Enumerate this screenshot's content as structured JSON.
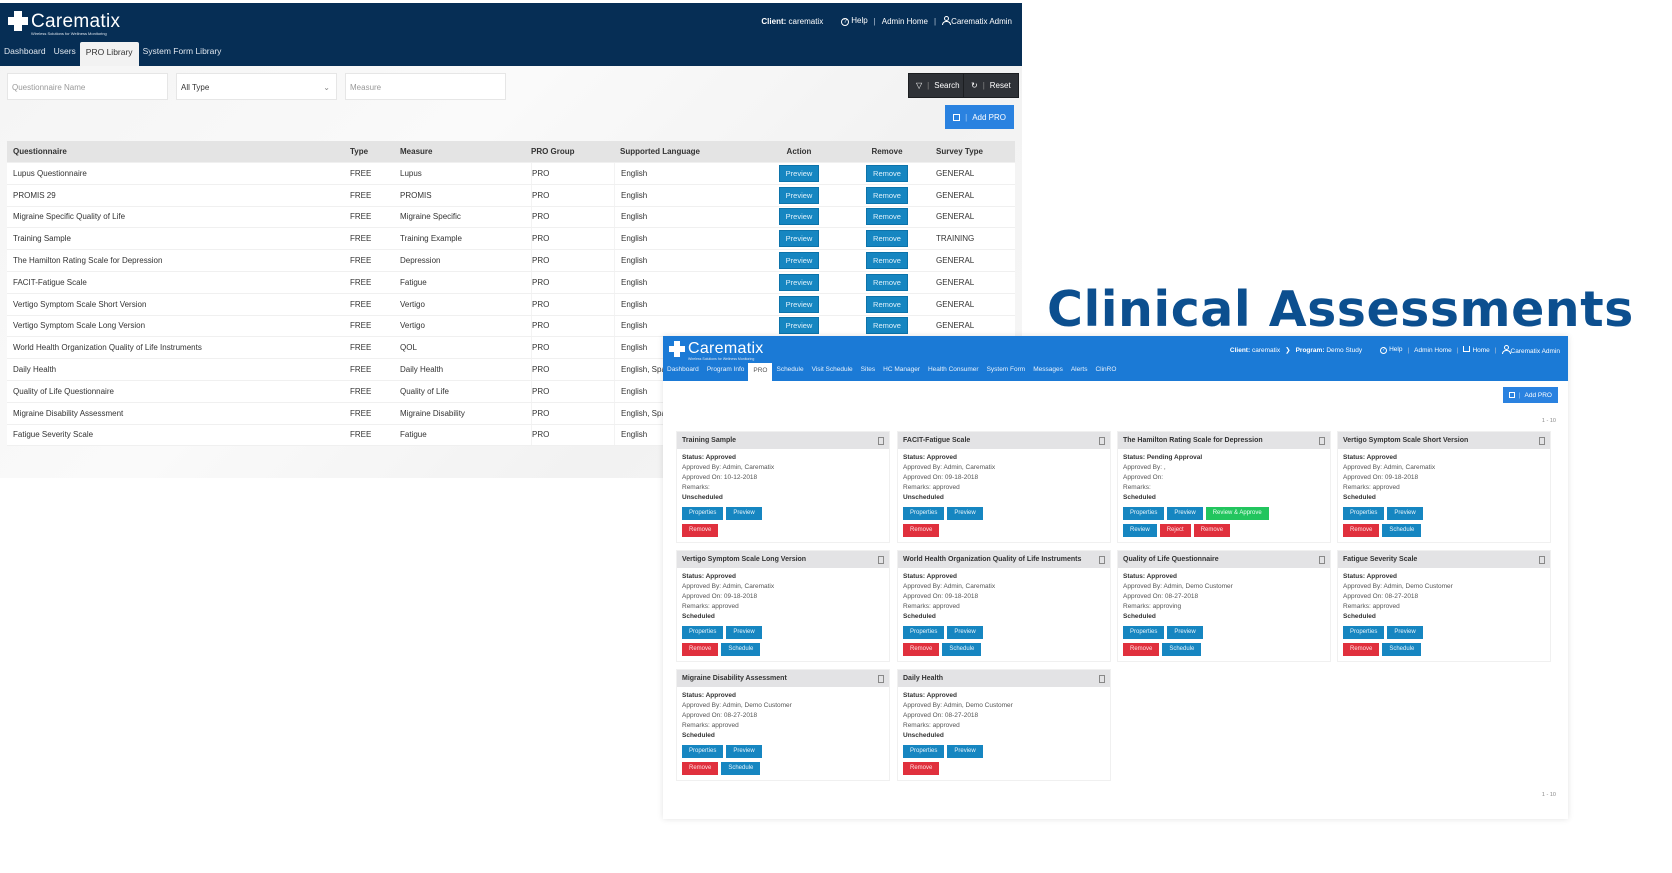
{
  "slide_title": "Clinical Assessments",
  "library_window": {
    "brand": {
      "name": "Carematix",
      "tagline": "Wireless Solutions for Wellness Monitoring"
    },
    "header": {
      "client_label": "Client:",
      "client_value": "carematix",
      "help": "Help",
      "admin_home": "Admin Home",
      "user": "Carematix Admin"
    },
    "nav": [
      "Dashboard",
      "Users",
      "PRO Library",
      "System Form Library"
    ],
    "active_tab": "PRO Library",
    "filters": {
      "questionnaire_placeholder": "Questionnaire Name",
      "type_value": "All Type",
      "measure_placeholder": "Measure"
    },
    "buttons": {
      "search": "Search",
      "reset": "Reset",
      "add_pro": "Add PRO"
    },
    "table": {
      "columns": [
        "Questionnaire",
        "Type",
        "Measure",
        "PRO Group",
        "Supported Language",
        "Action",
        "Remove",
        "Survey Type"
      ],
      "action_label": "Preview",
      "remove_label": "Remove",
      "rows": [
        {
          "questionnaire": "Lupus Questionnaire",
          "type": "FREE",
          "measure": "Lupus",
          "group": "PRO",
          "language": "English",
          "survey_type": "GENERAL",
          "has_actions": true
        },
        {
          "questionnaire": "PROMIS 29",
          "type": "FREE",
          "measure": "PROMIS",
          "group": "PRO",
          "language": "English",
          "survey_type": "GENERAL",
          "has_actions": true
        },
        {
          "questionnaire": "Migraine Specific Quality of Life",
          "type": "FREE",
          "measure": "Migraine Specific",
          "group": "PRO",
          "language": "English",
          "survey_type": "GENERAL",
          "has_actions": true
        },
        {
          "questionnaire": "Training Sample",
          "type": "FREE",
          "measure": "Training Example",
          "group": "PRO",
          "language": "English",
          "survey_type": "TRAINING",
          "has_actions": true
        },
        {
          "questionnaire": "The Hamilton Rating Scale for Depression",
          "type": "FREE",
          "measure": "Depression",
          "group": "PRO",
          "language": "English",
          "survey_type": "GENERAL",
          "has_actions": true
        },
        {
          "questionnaire": "FACIT-Fatigue Scale",
          "type": "FREE",
          "measure": "Fatigue",
          "group": "PRO",
          "language": "English",
          "survey_type": "GENERAL",
          "has_actions": true
        },
        {
          "questionnaire": "Vertigo Symptom Scale Short Version",
          "type": "FREE",
          "measure": "Vertigo",
          "group": "PRO",
          "language": "English",
          "survey_type": "GENERAL",
          "has_actions": true
        },
        {
          "questionnaire": "Vertigo Symptom Scale Long Version",
          "type": "FREE",
          "measure": "Vertigo",
          "group": "PRO",
          "language": "English",
          "survey_type": "GENERAL",
          "has_actions": true
        },
        {
          "questionnaire": "World Health Organization Quality of Life Instruments",
          "type": "FREE",
          "measure": "QOL",
          "group": "PRO",
          "language": "English",
          "survey_type": "",
          "has_actions": false
        },
        {
          "questionnaire": "Daily Health",
          "type": "FREE",
          "measure": "Daily Health",
          "group": "PRO",
          "language": "English, Spanish",
          "survey_type": "",
          "has_actions": false
        },
        {
          "questionnaire": "Quality of Life Questionnaire",
          "type": "FREE",
          "measure": "Quality of Life",
          "group": "PRO",
          "language": "English",
          "survey_type": "",
          "has_actions": false
        },
        {
          "questionnaire": "Migraine Disability Assessment",
          "type": "FREE",
          "measure": "Migraine Disability",
          "group": "PRO",
          "language": "English, Spanish",
          "survey_type": "",
          "has_actions": false
        },
        {
          "questionnaire": "Fatigue Severity Scale",
          "type": "FREE",
          "measure": "Fatigue",
          "group": "PRO",
          "language": "English",
          "survey_type": "",
          "has_actions": false
        }
      ]
    }
  },
  "program_window": {
    "brand": {
      "name": "Carematix",
      "tagline": "Wireless Solutions for Wellness Monitoring"
    },
    "header": {
      "client_label": "Client:",
      "client_value": "carematix",
      "program_label": "Program:",
      "program_value": "Demo Study",
      "help": "Help",
      "admin_home": "Admin Home",
      "home": "Home",
      "user": "Carematix Admin"
    },
    "nav": [
      "Dashboard",
      "Program Info",
      "PRO",
      "Schedule",
      "Visit Schedule",
      "Sites",
      "HC Manager",
      "Health Consumer",
      "System Form",
      "Messages",
      "Alerts",
      "ClinRO"
    ],
    "active_tab": "PRO",
    "add_pro": "Add PRO",
    "count": "1 - 10",
    "cards": [
      {
        "title": "Training Sample",
        "status": "Status: Approved",
        "approved_by": "Approved By: Admin, Carematix",
        "approved_on": "Approved On: 10-12-2018",
        "remarks": "Remarks:",
        "schedule": "Unscheduled",
        "row1": [
          [
            "Properties",
            "blue"
          ],
          [
            "Preview",
            "blue"
          ]
        ],
        "row2": [
          [
            "Remove",
            "red"
          ]
        ]
      },
      {
        "title": "FACIT-Fatigue Scale",
        "status": "Status: Approved",
        "approved_by": "Approved By: Admin, Carematix",
        "approved_on": "Approved On: 09-18-2018",
        "remarks": "Remarks: approved",
        "schedule": "Unscheduled",
        "row1": [
          [
            "Properties",
            "blue"
          ],
          [
            "Preview",
            "blue"
          ]
        ],
        "row2": [
          [
            "Remove",
            "red"
          ]
        ]
      },
      {
        "title": "The Hamilton Rating Scale for Depression",
        "status": "Status: Pending Approval",
        "approved_by": "Approved By: ,",
        "approved_on": "Approved On:",
        "remarks": "Remarks:",
        "schedule": "Scheduled",
        "row1": [
          [
            "Properties",
            "blue"
          ],
          [
            "Preview",
            "blue"
          ],
          [
            "Review & Approve",
            "green"
          ]
        ],
        "row2": [
          [
            "Review",
            "blue"
          ],
          [
            "Reject",
            "red"
          ],
          [
            "Remove",
            "red"
          ]
        ]
      },
      {
        "title": "Vertigo Symptom Scale Short Version",
        "status": "Status: Approved",
        "approved_by": "Approved By: Admin, Carematix",
        "approved_on": "Approved On: 09-18-2018",
        "remarks": "Remarks: approved",
        "schedule": "Scheduled",
        "row1": [
          [
            "Properties",
            "blue"
          ],
          [
            "Preview",
            "blue"
          ]
        ],
        "row2": [
          [
            "Remove",
            "red"
          ],
          [
            "Schedule",
            "blue"
          ]
        ]
      },
      {
        "title": "Vertigo Symptom Scale Long Version",
        "status": "Status: Approved",
        "approved_by": "Approved By: Admin, Carematix",
        "approved_on": "Approved On: 09-18-2018",
        "remarks": "Remarks: approved",
        "schedule": "Scheduled",
        "row1": [
          [
            "Properties",
            "blue"
          ],
          [
            "Preview",
            "blue"
          ]
        ],
        "row2": [
          [
            "Remove",
            "red"
          ],
          [
            "Schedule",
            "blue"
          ]
        ]
      },
      {
        "title": "World Health Organization Quality of Life Instruments",
        "status": "Status: Approved",
        "approved_by": "Approved By: Admin, Carematix",
        "approved_on": "Approved On: 09-18-2018",
        "remarks": "Remarks: approved",
        "schedule": "Scheduled",
        "row1": [
          [
            "Properties",
            "blue"
          ],
          [
            "Preview",
            "blue"
          ]
        ],
        "row2": [
          [
            "Remove",
            "red"
          ],
          [
            "Schedule",
            "blue"
          ]
        ]
      },
      {
        "title": "Quality of Life Questionnaire",
        "status": "Status: Approved",
        "approved_by": "Approved By: Admin, Demo Customer",
        "approved_on": "Approved On: 08-27-2018",
        "remarks": "Remarks: approving",
        "schedule": "Scheduled",
        "row1": [
          [
            "Properties",
            "blue"
          ],
          [
            "Preview",
            "blue"
          ]
        ],
        "row2": [
          [
            "Remove",
            "red"
          ],
          [
            "Schedule",
            "blue"
          ]
        ]
      },
      {
        "title": "Fatigue Severity Scale",
        "status": "Status: Approved",
        "approved_by": "Approved By: Admin, Demo Customer",
        "approved_on": "Approved On: 08-27-2018",
        "remarks": "Remarks: approved",
        "schedule": "Scheduled",
        "row1": [
          [
            "Properties",
            "blue"
          ],
          [
            "Preview",
            "blue"
          ]
        ],
        "row2": [
          [
            "Remove",
            "red"
          ],
          [
            "Schedule",
            "blue"
          ]
        ]
      },
      {
        "title": "Migraine Disability Assessment",
        "status": "Status: Approved",
        "approved_by": "Approved By: Admin, Demo Customer",
        "approved_on": "Approved On: 08-27-2018",
        "remarks": "Remarks: approved",
        "schedule": "Scheduled",
        "row1": [
          [
            "Properties",
            "blue"
          ],
          [
            "Preview",
            "blue"
          ]
        ],
        "row2": [
          [
            "Remove",
            "red"
          ],
          [
            "Schedule",
            "blue"
          ]
        ]
      },
      {
        "title": "Daily Health",
        "status": "Status: Approved",
        "approved_by": "Approved By: Admin, Demo Customer",
        "approved_on": "Approved On: 08-27-2018",
        "remarks": "Remarks: approved",
        "schedule": "Unscheduled",
        "row1": [
          [
            "Properties",
            "blue"
          ],
          [
            "Preview",
            "blue"
          ]
        ],
        "row2": [
          [
            "Remove",
            "red"
          ]
        ]
      }
    ]
  },
  "colors": {
    "header_dark": "#062e55",
    "header_blue": "#1b7ad6",
    "btn_blue": "#1686c1",
    "btn_red": "#e0303d",
    "btn_green": "#22c55e",
    "title_blue": "#0c4f8f"
  }
}
